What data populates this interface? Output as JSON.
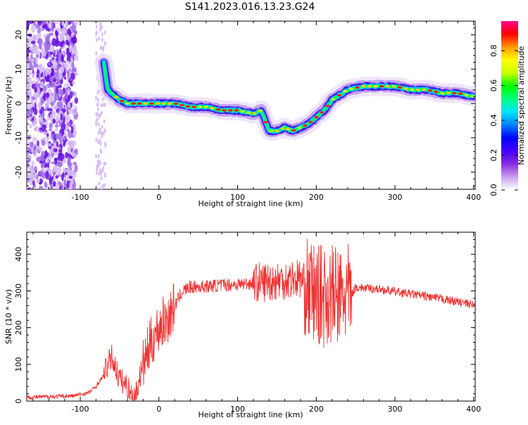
{
  "title": "S141.2023.016.13.23.G24",
  "chart_data": [
    {
      "type": "heatmap",
      "xlabel": "Height of straight line (km)",
      "ylabel": "Frequency (Hz)",
      "xlim": [
        -168,
        402
      ],
      "ylim": [
        -25,
        24
      ],
      "x_ticks": [
        -100,
        0,
        100,
        200,
        300,
        400
      ],
      "y_ticks": [
        -20,
        -10,
        0,
        10,
        20
      ],
      "grid": false,
      "colorbar": {
        "label": "Normalized spectral amplitude",
        "range": [
          0.0,
          0.97
        ],
        "ticks": [
          0.0,
          0.2,
          0.4,
          0.6,
          0.8
        ],
        "colors": [
          "#ffffff",
          "#c8a0f0",
          "#8a2be2",
          "#4400ff",
          "#0000ff",
          "#0080ff",
          "#00e5ff",
          "#00ff80",
          "#00ff00",
          "#c8ff00",
          "#ffff00",
          "#ff9900",
          "#ff0000",
          "#ff0090"
        ]
      },
      "ridge": {
        "x": [
          -70,
          -65,
          -60,
          -50,
          -40,
          -20,
          0,
          20,
          40,
          60,
          80,
          100,
          120,
          130,
          140,
          150,
          160,
          170,
          180,
          190,
          200,
          210,
          220,
          240,
          260,
          280,
          300,
          320,
          340,
          360,
          380,
          400
        ],
        "y": [
          12,
          4,
          3,
          1,
          0,
          0,
          0,
          0,
          -1,
          -1,
          -2,
          -2,
          -3,
          -2,
          -8,
          -8,
          -7,
          -8,
          -7,
          -6,
          -4,
          -2,
          1,
          4,
          5,
          5,
          5,
          4,
          4,
          3,
          3,
          2
        ]
      }
    },
    {
      "type": "line",
      "xlabel": "Height of straight line (km)",
      "ylabel": "SNR (10 * v/v)",
      "xlim": [
        -168,
        402
      ],
      "ylim": [
        0,
        460
      ],
      "x_ticks": [
        -100,
        0,
        100,
        200,
        300,
        400
      ],
      "y_ticks": [
        0,
        100,
        200,
        300,
        400
      ],
      "color": "#ee3333",
      "grid": false,
      "series": [
        {
          "x": [
            -168,
            -140,
            -110,
            -90,
            -80,
            -70,
            -65,
            -60,
            -55,
            -50,
            -45,
            -40,
            -35,
            -30,
            -25,
            -20,
            -15,
            -10,
            -5,
            0,
            5,
            10,
            15,
            20,
            25,
            30,
            40,
            60,
            80,
            100,
            120,
            140,
            160,
            180,
            190,
            200,
            210,
            220,
            230,
            240,
            245,
            250,
            260,
            280,
            300,
            320,
            340,
            360,
            380,
            400
          ],
          "y": [
            10,
            12,
            14,
            22,
            40,
            70,
            100,
            120,
            90,
            60,
            50,
            40,
            20,
            10,
            60,
            100,
            130,
            160,
            180,
            200,
            215,
            220,
            240,
            260,
            280,
            300,
            310,
            312,
            316,
            318,
            322,
            326,
            330,
            335,
            300,
            290,
            285,
            290,
            280,
            290,
            290,
            310,
            308,
            305,
            298,
            292,
            285,
            278,
            270,
            262
          ]
        }
      ]
    }
  ]
}
